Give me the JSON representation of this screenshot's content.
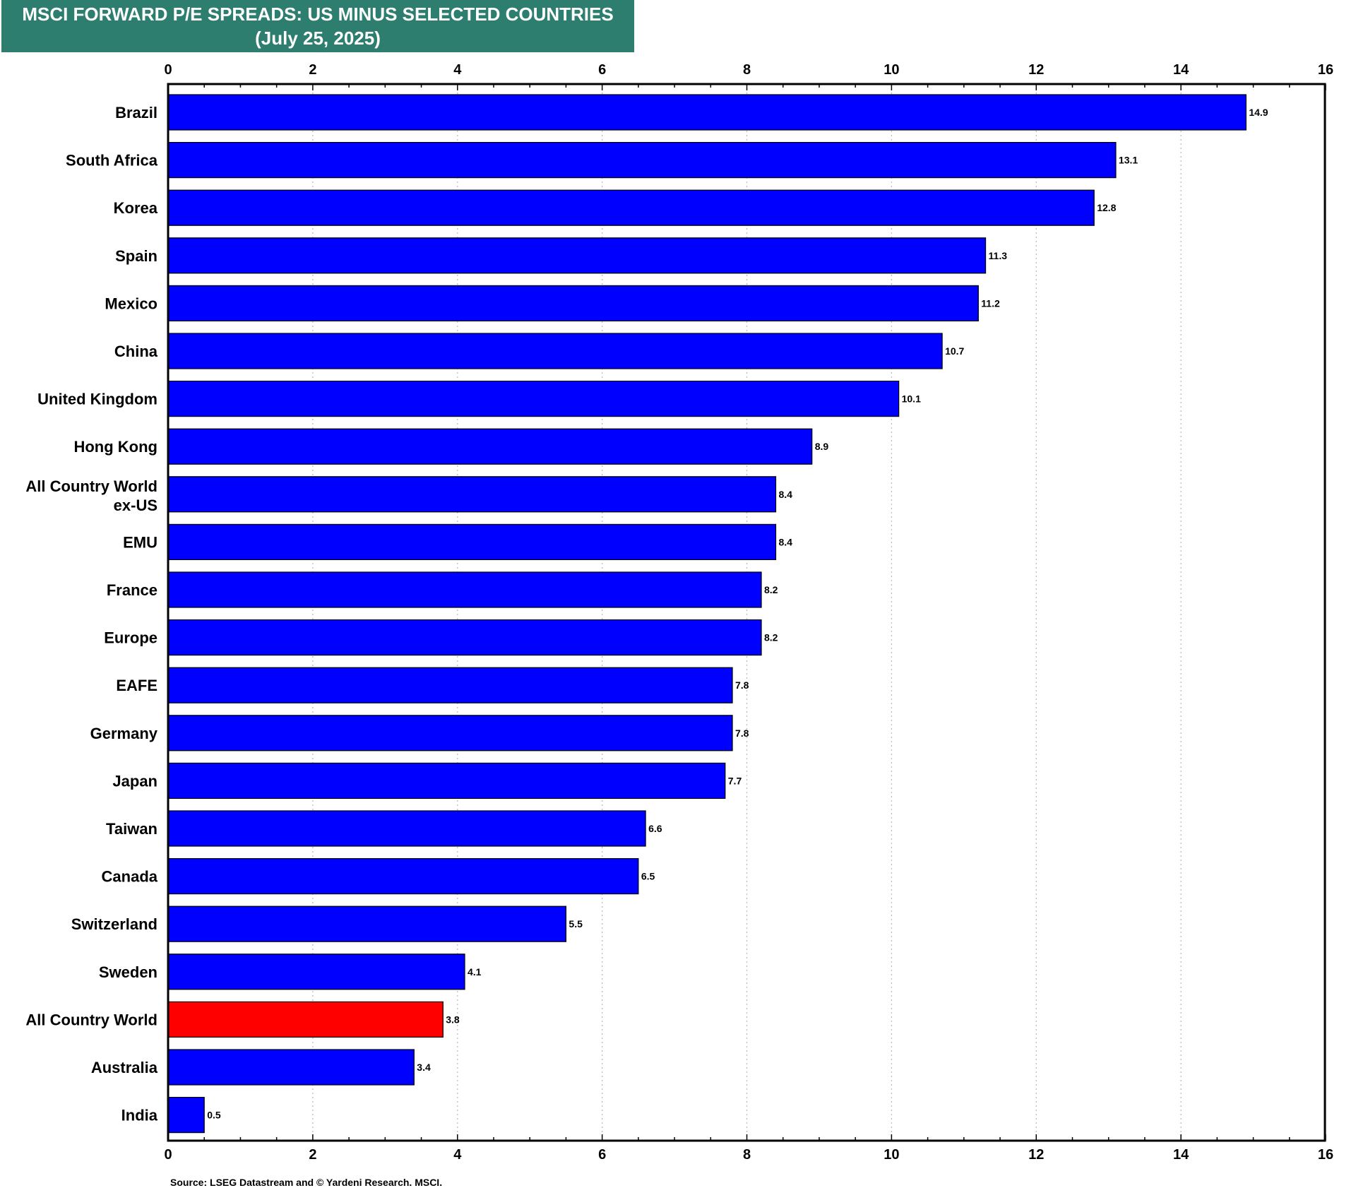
{
  "chart_data": {
    "type": "bar",
    "orientation": "horizontal",
    "title": "MSCI FORWARD P/E SPREADS: US MINUS SELECTED COUNTRIES",
    "subtitle": "(July 25, 2025)",
    "categories": [
      [
        "Brazil"
      ],
      [
        "South Africa"
      ],
      [
        "Korea"
      ],
      [
        "Spain"
      ],
      [
        "Mexico"
      ],
      [
        "China"
      ],
      [
        "United Kingdom"
      ],
      [
        "Hong Kong"
      ],
      [
        "All Country World",
        "ex-US"
      ],
      [
        "EMU"
      ],
      [
        "France"
      ],
      [
        "Europe"
      ],
      [
        "EAFE"
      ],
      [
        "Germany"
      ],
      [
        "Japan"
      ],
      [
        "Taiwan"
      ],
      [
        "Canada"
      ],
      [
        "Switzerland"
      ],
      [
        "Sweden"
      ],
      [
        "All Country World"
      ],
      [
        "Australia"
      ],
      [
        "India"
      ]
    ],
    "values": [
      14.9,
      13.1,
      12.8,
      11.3,
      11.2,
      10.7,
      10.1,
      8.9,
      8.4,
      8.4,
      8.2,
      8.2,
      7.8,
      7.8,
      7.7,
      6.6,
      6.5,
      5.5,
      4.1,
      3.8,
      3.4,
      0.5
    ],
    "data_labels": [
      "14.9",
      "13.1",
      "12.8",
      "11.3",
      "11.2",
      "10.7",
      "10.1",
      "8.9",
      "8.4",
      "8.4",
      "8.2",
      "8.2",
      "7.8",
      "7.8",
      "7.7",
      "6.6",
      "6.5",
      "5.5",
      "4.1",
      "3.8",
      "3.4",
      "0.5"
    ],
    "highlight_category": "All Country World",
    "xlim": [
      0,
      16
    ],
    "x_ticks": [
      "0",
      "2",
      "4",
      "6",
      "8",
      "10",
      "12",
      "14",
      "16"
    ],
    "grid": "vertical dotted",
    "axis_labels_top_and_bottom": true,
    "colors": {
      "bar": "#0000ff",
      "highlight": "#ff0000",
      "bar_edge": "#000000",
      "title_banner": "#2e7e70"
    }
  },
  "source": "Source: LSEG Datastream and © Yardeni Research. MSCI."
}
